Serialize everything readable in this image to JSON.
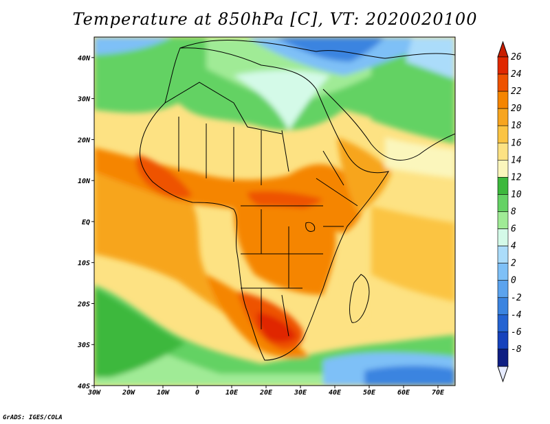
{
  "title": "Temperature at 850hPa [C], VT: 2020020100",
  "credit": "GrADS: IGES/COLA",
  "map": {
    "lon_range": [
      -30,
      75
    ],
    "lat_range": [
      -40,
      45
    ],
    "lon_ticks": [
      {
        "value": -30,
        "label": "30W"
      },
      {
        "value": -20,
        "label": "20W"
      },
      {
        "value": -10,
        "label": "10W"
      },
      {
        "value": 0,
        "label": "0"
      },
      {
        "value": 10,
        "label": "10E"
      },
      {
        "value": 20,
        "label": "20E"
      },
      {
        "value": 30,
        "label": "30E"
      },
      {
        "value": 40,
        "label": "40E"
      },
      {
        "value": 50,
        "label": "50E"
      },
      {
        "value": 60,
        "label": "60E"
      },
      {
        "value": 70,
        "label": "70E"
      }
    ],
    "lat_ticks": [
      {
        "value": 40,
        "label": "40N"
      },
      {
        "value": 30,
        "label": "30N"
      },
      {
        "value": 20,
        "label": "20N"
      },
      {
        "value": 10,
        "label": "10N"
      },
      {
        "value": 0,
        "label": "EQ"
      },
      {
        "value": -10,
        "label": "10S"
      },
      {
        "value": -20,
        "label": "20S"
      },
      {
        "value": -30,
        "label": "30S"
      },
      {
        "value": -40,
        "label": "40S"
      }
    ]
  },
  "colorbar": {
    "labels": [
      "26",
      "24",
      "22",
      "20",
      "18",
      "16",
      "14",
      "12",
      "10",
      "8",
      "6",
      "4",
      "2",
      "0",
      "-2",
      "-4",
      "-6",
      "-8"
    ],
    "colors_top_to_bottom": [
      "#e02800",
      "#ee5200",
      "#f58500",
      "#f7a51f",
      "#fbc443",
      "#fde283",
      "#fbf6bc",
      "#3cb83c",
      "#64d264",
      "#a0eb96",
      "#d4fae8",
      "#abdcfa",
      "#7ec0f7",
      "#5ba3ee",
      "#3b84e0",
      "#2463d2",
      "#1642bc",
      "#0d1d82"
    ],
    "overflow_high": "#c81e00",
    "overflow_low": "#e6ebff"
  }
}
